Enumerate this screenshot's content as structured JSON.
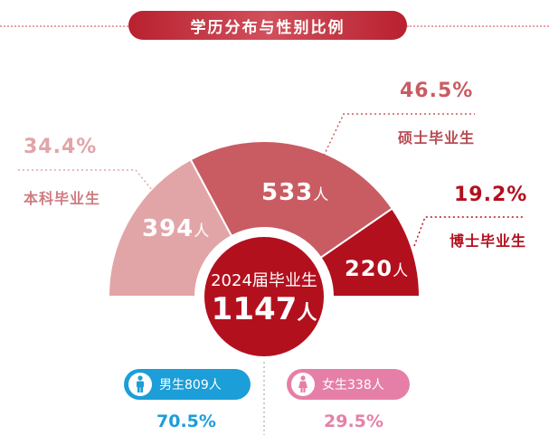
{
  "title": "学历分布与性别比例",
  "chart_data": {
    "type": "pie",
    "title": "学历分布与性别比例",
    "subtype": "half-donut",
    "categories": [
      "本科毕业生",
      "硕士毕业生",
      "博士毕业生"
    ],
    "values": [
      394,
      533,
      220
    ],
    "value_labels": [
      "394",
      "533",
      "220"
    ],
    "unit": "人",
    "percentages": [
      "34.4%",
      "46.5%",
      "19.2%"
    ],
    "colors": [
      "#e1a5a8",
      "#c95c63",
      "#b3101e"
    ],
    "total_label": "2024届毕业生",
    "total": "1147",
    "gender": [
      {
        "label": "男生809人",
        "percent": "70.5%",
        "color": "#1c9ed8"
      },
      {
        "label": "女生338人",
        "percent": "29.5%",
        "color": "#e67fa8"
      }
    ]
  }
}
